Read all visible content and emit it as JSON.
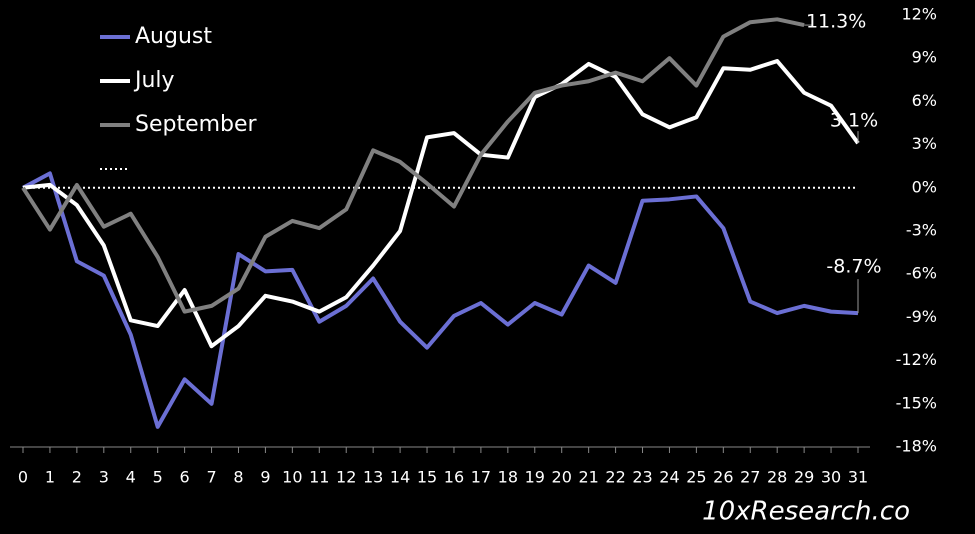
{
  "chart_data": {
    "type": "line",
    "x": [
      0,
      1,
      2,
      3,
      4,
      5,
      6,
      7,
      8,
      9,
      10,
      11,
      12,
      13,
      14,
      15,
      16,
      17,
      18,
      19,
      20,
      21,
      22,
      23,
      24,
      25,
      26,
      27,
      28,
      29,
      30,
      31
    ],
    "xlim": [
      0,
      31
    ],
    "xticks": [
      0,
      1,
      2,
      3,
      4,
      5,
      6,
      7,
      8,
      9,
      10,
      11,
      12,
      13,
      14,
      15,
      16,
      17,
      18,
      19,
      20,
      21,
      22,
      23,
      24,
      25,
      26,
      27,
      28,
      29,
      30,
      31
    ],
    "ylim": [
      -18,
      12
    ],
    "yticks": [
      {
        "value": -18,
        "label": "-18%"
      },
      {
        "value": -15,
        "label": "-15%"
      },
      {
        "value": -12,
        "label": "-12%"
      },
      {
        "value": -9,
        "label": "-9%"
      },
      {
        "value": -6,
        "label": "-6%"
      },
      {
        "value": -3,
        "label": "-3%"
      },
      {
        "value": 0,
        "label": "0%"
      },
      {
        "value": 3,
        "label": "3%"
      },
      {
        "value": 6,
        "label": "6%"
      },
      {
        "value": 9,
        "label": "9%"
      },
      {
        "value": 12,
        "label": "12%"
      }
    ],
    "zero_line": 0,
    "series": [
      {
        "name": "August",
        "color": "#6b6fd4",
        "values": [
          0,
          1.0,
          -5.1,
          -6.1,
          -10.2,
          -16.6,
          -13.3,
          -15.0,
          -4.6,
          -5.8,
          -5.7,
          -9.3,
          -8.2,
          -6.3,
          -9.3,
          -11.1,
          -8.9,
          -8.0,
          -9.5,
          -8.0,
          -8.8,
          -5.4,
          -6.6,
          -0.9,
          -0.8,
          -0.6,
          -2.8,
          -7.9,
          -8.7,
          -8.2,
          -8.6,
          -8.7
        ],
        "value_labels": [
          null,
          null,
          null,
          null,
          null,
          null,
          null,
          null,
          null,
          null,
          null,
          null,
          null,
          null,
          null,
          null,
          null,
          null,
          null,
          null,
          null,
          null,
          null,
          null,
          null,
          null,
          null,
          null,
          null,
          null,
          null,
          "-8.7%"
        ]
      },
      {
        "name": "July",
        "color": "#ffffff",
        "values": [
          0,
          0.2,
          -1.2,
          -4.0,
          -9.2,
          -9.6,
          -7.1,
          -11.0,
          -9.6,
          -7.5,
          -7.9,
          -8.6,
          -7.6,
          -5.4,
          -3.0,
          3.5,
          3.8,
          2.3,
          2.1,
          6.3,
          7.2,
          8.6,
          7.7,
          5.1,
          4.2,
          4.9,
          8.3,
          8.2,
          8.8,
          6.6,
          5.7,
          3.1
        ],
        "value_labels": [
          null,
          null,
          null,
          null,
          null,
          null,
          null,
          null,
          null,
          null,
          null,
          null,
          null,
          null,
          null,
          null,
          null,
          null,
          null,
          null,
          null,
          null,
          null,
          null,
          null,
          null,
          null,
          null,
          null,
          null,
          null,
          "3.1%"
        ]
      },
      {
        "name": "September",
        "color": "#808080",
        "values": [
          0,
          -2.9,
          0.2,
          -2.7,
          -1.8,
          -4.8,
          -8.6,
          -8.2,
          -7.0,
          -3.4,
          -2.3,
          -2.8,
          -1.5,
          2.6,
          1.8,
          0.3,
          -1.3,
          2.3,
          4.6,
          6.6,
          7.1,
          7.4,
          8.0,
          7.4,
          9.0,
          7.1,
          10.5,
          11.5,
          11.7,
          11.3,
          null,
          null
        ],
        "value_labels": [
          null,
          null,
          null,
          null,
          null,
          null,
          null,
          null,
          null,
          null,
          null,
          null,
          null,
          null,
          null,
          null,
          null,
          null,
          null,
          null,
          null,
          null,
          null,
          null,
          null,
          null,
          null,
          null,
          null,
          "11.3%",
          null,
          null
        ]
      }
    ],
    "watermark": "10xResearch.co"
  }
}
